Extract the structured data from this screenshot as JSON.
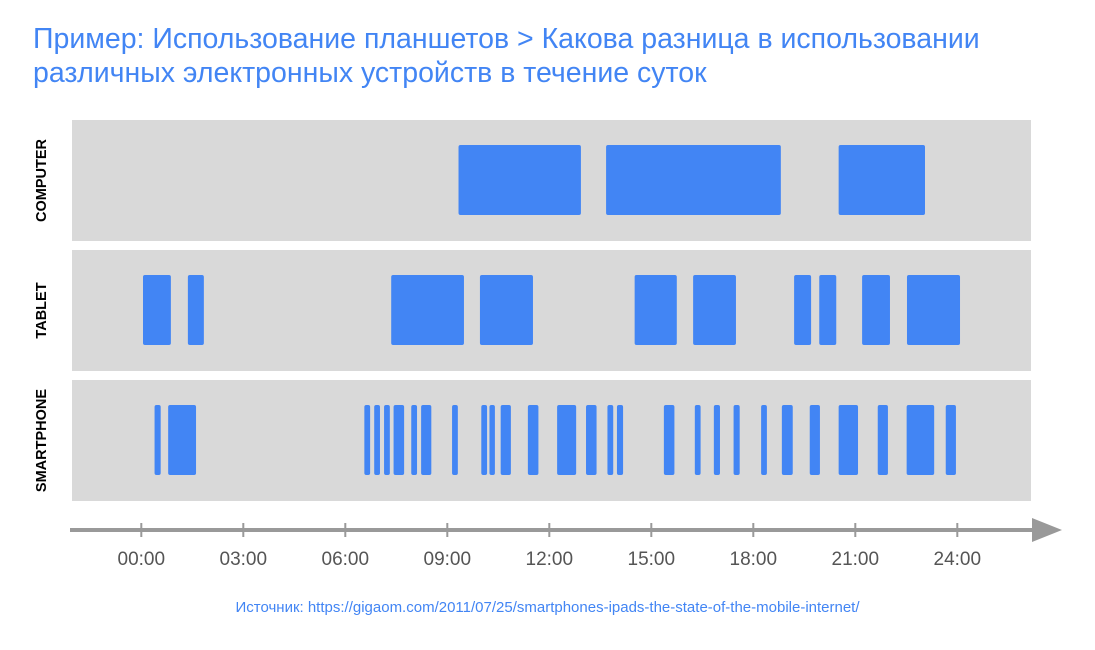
{
  "title": {
    "line1": "Пример: Использование планшетов > Какова разница в использовании",
    "line2": "различных электронных устройств в течение суток"
  },
  "source": "Источник: https://gigaom.com/2011/07/25/smartphones-ipads-the-state-of-the-mobile-internet/",
  "colors": {
    "bar": "#4285f4",
    "row_bg": "#d9d9d9",
    "axis": "#999999",
    "title": "#4285f4"
  },
  "chart_data": {
    "type": "timeline",
    "xlabel": "",
    "xlim": [
      0,
      24
    ],
    "ticks": [
      "00:00",
      "03:00",
      "06:00",
      "09:00",
      "12:00",
      "15:00",
      "18:00",
      "21:00",
      "24:00"
    ],
    "rows": [
      {
        "name": "COMPUTER",
        "intervals": [
          [
            9.33,
            12.93
          ],
          [
            13.67,
            18.81
          ],
          [
            20.51,
            23.05
          ]
        ]
      },
      {
        "name": "TABLET",
        "intervals": [
          [
            0.05,
            0.87
          ],
          [
            1.37,
            1.84
          ],
          [
            7.35,
            9.49
          ],
          [
            9.96,
            11.52
          ],
          [
            14.51,
            15.75
          ],
          [
            16.23,
            17.49
          ],
          [
            19.2,
            19.7
          ],
          [
            19.94,
            20.44
          ],
          [
            21.2,
            22.02
          ],
          [
            22.52,
            24.08
          ]
        ]
      },
      {
        "name": "SMARTPHONE",
        "intervals": [
          [
            0.39,
            0.57
          ],
          [
            0.79,
            1.61
          ],
          [
            6.56,
            6.73
          ],
          [
            6.85,
            7.02
          ],
          [
            7.14,
            7.31
          ],
          [
            7.42,
            7.73
          ],
          [
            7.94,
            8.11
          ],
          [
            8.23,
            8.53
          ],
          [
            9.14,
            9.31
          ],
          [
            10.0,
            10.17
          ],
          [
            10.24,
            10.4
          ],
          [
            10.57,
            10.87
          ],
          [
            11.37,
            11.68
          ],
          [
            12.23,
            12.79
          ],
          [
            13.08,
            13.39
          ],
          [
            13.71,
            13.88
          ],
          [
            13.99,
            14.17
          ],
          [
            15.37,
            15.68
          ],
          [
            16.28,
            16.45
          ],
          [
            16.84,
            17.02
          ],
          [
            17.42,
            17.6
          ],
          [
            18.23,
            18.4
          ],
          [
            18.84,
            19.16
          ],
          [
            19.66,
            19.96
          ],
          [
            20.51,
            21.08
          ],
          [
            21.66,
            21.96
          ],
          [
            22.51,
            23.32
          ],
          [
            23.66,
            23.96
          ]
        ]
      }
    ]
  }
}
